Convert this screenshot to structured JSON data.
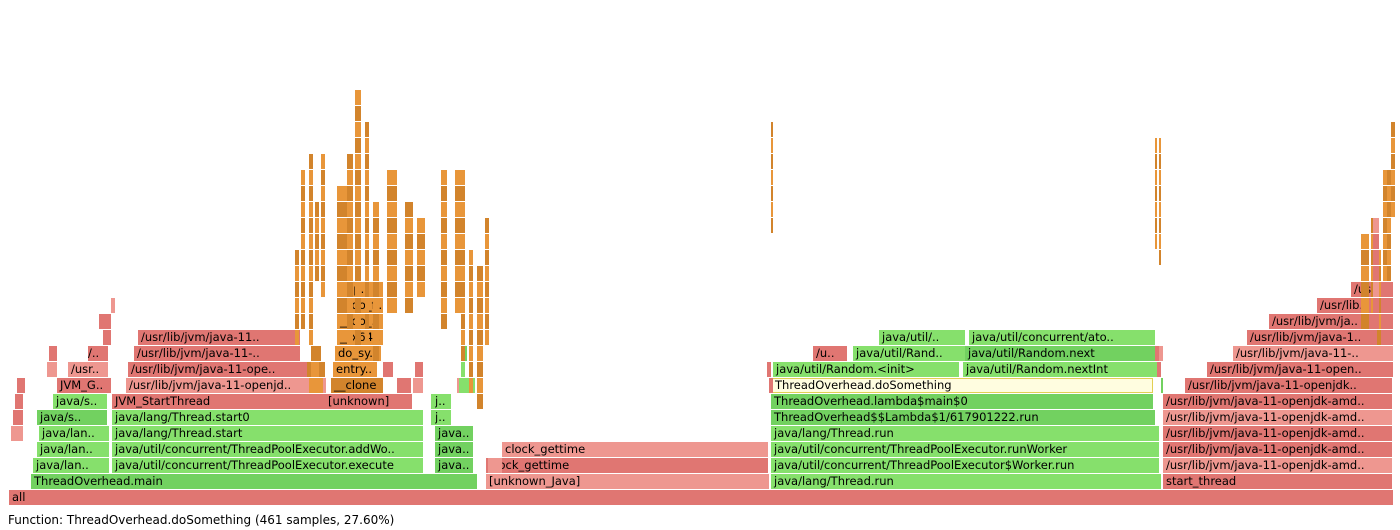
{
  "colors": {
    "java": "#86e06c",
    "java_alt": "#72d160",
    "native": "#e07672",
    "native_alt": "#ee9790",
    "kernel": "#e8963a",
    "kernel_alt": "#d2842c",
    "highlight": "#fffde0"
  },
  "status": {
    "text": "Function: ThreadOverhead.doSomething (461 samples, 27.60%)"
  },
  "frames": [
    {
      "label": "all",
      "t": "native",
      "l": 0
    },
    {
      "label": "ThreadOverhead.main",
      "t": "java",
      "l": 1
    },
    {
      "label": "[unknown_Java]",
      "t": "native_alt",
      "l": 1
    },
    {
      "label": "java/lang/Thread.run",
      "t": "java",
      "l": 1
    },
    {
      "label": "start_thread",
      "t": "native",
      "l": 1
    },
    {
      "label": "java/lan..",
      "t": "java",
      "l": 2
    },
    {
      "label": "java/util/concurrent/ThreadPoolExecutor.execute",
      "t": "java",
      "l": 2
    },
    {
      "label": "java..",
      "t": "java",
      "l": 2
    },
    {
      "label": "clock_gettime",
      "t": "native",
      "l": 2
    },
    {
      "label": "java/util/concurrent/ThreadPoolExecutor$Worker.run",
      "t": "java",
      "l": 2
    },
    {
      "label": "/usr/lib/jvm/java-11-openjdk-amd..",
      "t": "native",
      "l": 2
    },
    {
      "label": "java/lan..",
      "t": "java",
      "l": 3
    },
    {
      "label": "java/util/concurrent/ThreadPoolExecutor.addWo..",
      "t": "java",
      "l": 3
    },
    {
      "label": "java..",
      "t": "java",
      "l": 3
    },
    {
      "label": "clock_gettime",
      "t": "native",
      "l": 3
    },
    {
      "label": "java/util/concurrent/ThreadPoolExecutor.runWorker",
      "t": "java",
      "l": 3
    },
    {
      "label": "/usr/lib/jvm/java-11-openjdk-amd..",
      "t": "native",
      "l": 3
    },
    {
      "label": "java/lan..",
      "t": "java",
      "l": 4
    },
    {
      "label": "java/lang/Thread.start",
      "t": "java",
      "l": 4
    },
    {
      "label": "java..",
      "t": "java",
      "l": 4
    },
    {
      "label": "java/lang/Thread.run",
      "t": "java",
      "l": 4
    },
    {
      "label": "/usr/lib/jvm/java-11-openjdk-amd..",
      "t": "native",
      "l": 4
    },
    {
      "label": "java/s..",
      "t": "java",
      "l": 5
    },
    {
      "label": "java/lang/Thread.start0",
      "t": "java",
      "l": 5
    },
    {
      "label": "j..",
      "t": "java",
      "l": 5
    },
    {
      "label": "ThreadOverhead$$Lambda$1/617901222.run",
      "t": "java",
      "l": 5
    },
    {
      "label": "/usr/lib/jvm/java-11-openjdk-amd..",
      "t": "native",
      "l": 5
    },
    {
      "label": "java/s..",
      "t": "java",
      "l": 6
    },
    {
      "label": "JVM_StartThread",
      "t": "native",
      "l": 6
    },
    {
      "label": "[unknown]",
      "t": "native",
      "l": 6
    },
    {
      "label": "j..",
      "t": "java",
      "l": 6
    },
    {
      "label": "ThreadOverhead.lambda$main$0",
      "t": "java",
      "l": 6
    },
    {
      "label": "/usr/lib/jvm/java-11-openjdk-amd..",
      "t": "native",
      "l": 6
    },
    {
      "label": "JVM_G..",
      "t": "native",
      "l": 7
    },
    {
      "label": "/usr/lib/jvm/java-11-openjd..",
      "t": "native",
      "l": 7
    },
    {
      "label": "__clone",
      "t": "kernel",
      "l": 7
    },
    {
      "label": "ThreadOverhead.doSomething",
      "t": "highlight",
      "l": 7
    },
    {
      "label": "/usr/lib/jvm/java-11-openjdk..",
      "t": "native",
      "l": 7
    },
    {
      "label": "/usr..",
      "t": "native",
      "l": 8
    },
    {
      "label": "/usr/lib/jvm/java-11-ope..",
      "t": "native",
      "l": 8
    },
    {
      "label": "entry..",
      "t": "kernel",
      "l": 8
    },
    {
      "label": "java/util/Random.<init>",
      "t": "java",
      "l": 8
    },
    {
      "label": "java/util/Random.nextInt",
      "t": "java",
      "l": 8
    },
    {
      "label": "/usr/lib/jvm/java-11-open..",
      "t": "native",
      "l": 8
    },
    {
      "label": "/..",
      "t": "native",
      "l": 9
    },
    {
      "label": "/usr/lib/jvm/java-11-..",
      "t": "native",
      "l": 9
    },
    {
      "label": "do_sy..",
      "t": "kernel",
      "l": 9
    },
    {
      "label": "/u..",
      "t": "native",
      "l": 9
    },
    {
      "label": "java/util/Rand..",
      "t": "java",
      "l": 9
    },
    {
      "label": "java/util/Random.next",
      "t": "java",
      "l": 9
    },
    {
      "label": "/usr/lib/jvm/java-11-..",
      "t": "native",
      "l": 9
    },
    {
      "label": "/usr/lib/jvm/java-11..",
      "t": "native",
      "l": 10
    },
    {
      "label": "__x64..",
      "t": "kernel",
      "l": 10
    },
    {
      "label": "java/util/..",
      "t": "java",
      "l": 10
    },
    {
      "label": "java/util/concurrent/ato..",
      "t": "java",
      "l": 10
    },
    {
      "label": "/usr/lib/jvm/java-1..",
      "t": "native",
      "l": 10
    },
    {
      "label": "__do_..",
      "t": "kernel",
      "l": 11
    },
    {
      "label": "/usr/lib/jvm/ja..",
      "t": "native",
      "l": 11
    },
    {
      "label": "__do_f..",
      "t": "kernel",
      "l": 12
    },
    {
      "label": "/usr/lib..",
      "t": "native",
      "l": 12
    },
    {
      "label": "cop..",
      "t": "kernel",
      "l": 13
    },
    {
      "label": "/us..",
      "t": "native",
      "l": 13
    },
    {
      "label": "",
      "t": "native",
      "l": 4
    },
    {
      "label": "",
      "t": "native",
      "l": 5
    },
    {
      "label": "",
      "t": "native",
      "l": 6
    },
    {
      "label": "",
      "t": "native",
      "l": 7
    },
    {
      "label": "",
      "t": "native",
      "l": 8
    },
    {
      "label": "",
      "t": "native",
      "l": 9
    },
    {
      "label": "",
      "t": "native",
      "l": 10
    },
    {
      "label": "",
      "t": "native",
      "l": 11
    },
    {
      "label": "",
      "t": "native",
      "l": 12
    },
    {
      "label": "",
      "t": "java",
      "l": 5
    },
    {
      "label": "",
      "t": "java",
      "l": 6
    },
    {
      "label": "",
      "t": "native",
      "l": 7
    },
    {
      "label": "",
      "t": "native",
      "l": 7
    },
    {
      "label": "",
      "t": "native",
      "l": 8
    },
    {
      "label": "",
      "t": "native",
      "l": 6
    },
    {
      "label": "",
      "t": "kernel",
      "l": 8
    },
    {
      "label": "",
      "t": "kernel",
      "l": 7
    },
    {
      "label": "",
      "t": "kernel",
      "l": 9
    },
    {
      "label": "",
      "t": "kernel",
      "l": 8
    },
    {
      "label": "",
      "t": "native",
      "l": 8
    },
    {
      "label": "",
      "t": "native",
      "l": 7
    },
    {
      "label": "",
      "t": "java",
      "l": 7
    },
    {
      "label": "",
      "t": "java",
      "l": 8
    },
    {
      "label": "",
      "t": "java",
      "l": 9
    },
    {
      "label": "",
      "t": "native",
      "l": 2
    },
    {
      "label": "",
      "t": "native",
      "l": 8
    },
    {
      "label": "",
      "t": "native",
      "l": 7
    },
    {
      "label": "",
      "t": "native",
      "l": 8
    },
    {
      "label": "",
      "t": "native",
      "l": 9
    },
    {
      "label": "",
      "t": "java",
      "l": 7
    },
    {
      "label": "",
      "t": "native",
      "l": 9
    },
    {
      "label": "",
      "t": "java",
      "l": 8
    },
    {
      "label": "",
      "t": "java",
      "l": 9
    },
    {
      "label": "",
      "t": "java",
      "l": 10
    }
  ],
  "spikes": [
    {
      "t": "kernel",
      "l": 10,
      "n": 6
    },
    {
      "t": "kernel",
      "l": 11,
      "n": 10
    },
    {
      "t": "kernel",
      "l": 10,
      "n": 12
    },
    {
      "t": "kernel",
      "l": 14,
      "n": 5
    },
    {
      "t": "kernel",
      "l": 13,
      "n": 9
    },
    {
      "t": "kernel",
      "l": 12,
      "n": 8
    },
    {
      "t": "kernel",
      "l": 10,
      "n": 12
    },
    {
      "t": "kernel",
      "l": 10,
      "n": 16
    },
    {
      "t": "kernel",
      "l": 10,
      "n": 14
    },
    {
      "t": "kernel",
      "l": 9,
      "n": 10
    },
    {
      "t": "kernel",
      "l": 12,
      "n": 9
    },
    {
      "t": "kernel",
      "l": 12,
      "n": 7
    },
    {
      "t": "kernel",
      "l": 13,
      "n": 5
    },
    {
      "t": "kernel",
      "l": 11,
      "n": 10
    },
    {
      "t": "kernel",
      "l": 12,
      "n": 9
    },
    {
      "t": "kernel",
      "l": 9,
      "n": 12
    },
    {
      "t": "kernel",
      "l": 7,
      "n": 9
    },
    {
      "t": "kernel",
      "l": 6,
      "n": 9
    },
    {
      "t": "kernel",
      "l": 10,
      "n": 8
    },
    {
      "t": "kernel",
      "l": 17,
      "n": 7
    },
    {
      "t": "kernel",
      "l": 16,
      "n": 7
    },
    {
      "t": "kernel",
      "l": 15,
      "n": 8
    },
    {
      "t": "kernel",
      "l": 14,
      "n": 7
    },
    {
      "t": "kernel",
      "l": 14,
      "n": 7
    },
    {
      "t": "kernel",
      "l": 18,
      "n": 6
    },
    {
      "t": "kernel",
      "l": 11,
      "n": 6
    },
    {
      "t": "kernel",
      "l": 12,
      "n": 6
    },
    {
      "t": "kernel",
      "l": 10,
      "n": 6
    },
    {
      "t": "native",
      "l": 11,
      "n": 7
    }
  ]
}
